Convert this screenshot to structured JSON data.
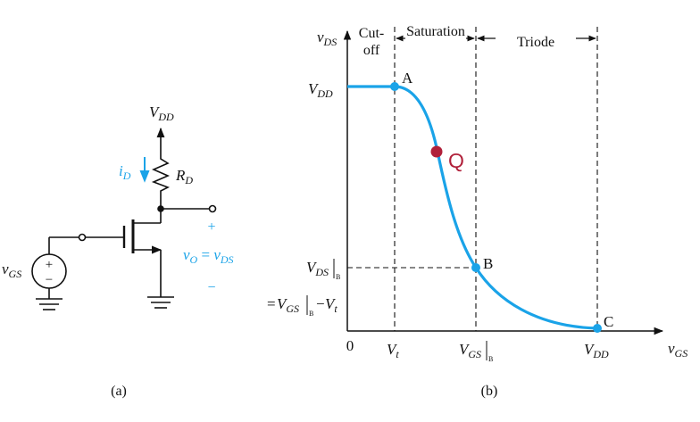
{
  "colors": {
    "ink": "#111111",
    "accent": "#1aa3e8",
    "q_point": "#b0203a"
  },
  "circuit": {
    "vdd": {
      "main": "V",
      "sub": "DD"
    },
    "rd": {
      "main": "R",
      "sub": "D"
    },
    "id": {
      "main": "i",
      "sub": "D"
    },
    "vgs": {
      "main": "v",
      "sub": "GS"
    },
    "vo": {
      "main": "v",
      "sub": "O",
      "eq": " = ",
      "main2": "v",
      "sub2": "DS"
    },
    "plus": "+",
    "minus": "−",
    "src_plus": "+",
    "src_minus": "−",
    "caption": "(a)"
  },
  "graph": {
    "y_axis": {
      "main": "v",
      "sub": "DS"
    },
    "x_axis": {
      "main": "v",
      "sub": "GS"
    },
    "origin": "0",
    "regions": {
      "cutoff_1": "Cut-",
      "cutoff_2": "off",
      "saturation": "Saturation",
      "triode": "Triode"
    },
    "y_vdd": {
      "main": "V",
      "sub": "DD"
    },
    "y_vdsb": {
      "main": "V",
      "sub": "DS",
      "bar": "B"
    },
    "y_eq": {
      "pre": "=",
      "main": "V",
      "sub": "GS",
      "bar": "B",
      "mid": "−",
      "main2": "V",
      "sub2": "t"
    },
    "x_vt": {
      "main": "V",
      "sub": "t"
    },
    "x_vgsb": {
      "main": "V",
      "sub": "GS",
      "bar": "B"
    },
    "x_vdd": {
      "main": "V",
      "sub": "DD"
    },
    "points": {
      "a": "A",
      "q": "Q",
      "b": "B",
      "c": "C"
    },
    "caption": "(b)"
  }
}
